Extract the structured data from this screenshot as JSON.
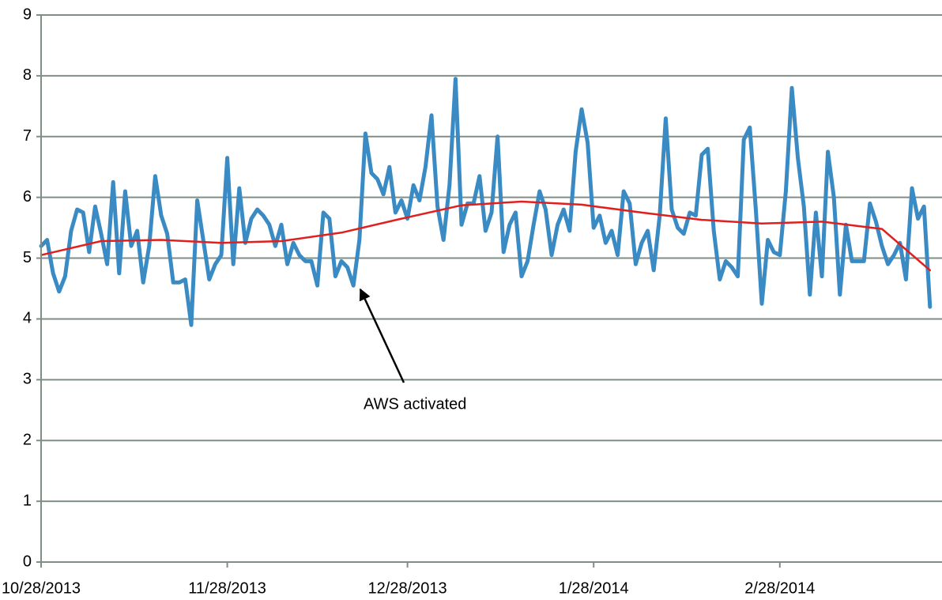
{
  "chart_data": {
    "type": "line",
    "annotation": "AWS activated",
    "xlim": [
      "2013-10-28",
      "2014-03-27"
    ],
    "xticks": [
      {
        "value": "2013-10-28",
        "label": "10/28/2013"
      },
      {
        "value": "2013-11-28",
        "label": "11/28/2013"
      },
      {
        "value": "2013-12-28",
        "label": "12/28/2013"
      },
      {
        "value": "2014-01-28",
        "label": "1/28/2014"
      },
      {
        "value": "2014-02-28",
        "label": "2/28/2014"
      }
    ],
    "ylim": [
      0,
      9
    ],
    "yticks": [
      0,
      1,
      2,
      3,
      4,
      5,
      6,
      7,
      8,
      9
    ],
    "grid": true,
    "series": [
      {
        "color": "#3a8ac4",
        "x": [
          "2013-10-28",
          "2013-10-29",
          "2013-10-30",
          "2013-10-31",
          "2013-11-01",
          "2013-11-02",
          "2013-11-03",
          "2013-11-04",
          "2013-11-05",
          "2013-11-06",
          "2013-11-07",
          "2013-11-08",
          "2013-11-09",
          "2013-11-10",
          "2013-11-11",
          "2013-11-12",
          "2013-11-13",
          "2013-11-14",
          "2013-11-15",
          "2013-11-16",
          "2013-11-17",
          "2013-11-18",
          "2013-11-19",
          "2013-11-20",
          "2013-11-21",
          "2013-11-22",
          "2013-11-23",
          "2013-11-24",
          "2013-11-25",
          "2013-11-26",
          "2013-11-27",
          "2013-11-28",
          "2013-11-29",
          "2013-11-30",
          "2013-12-01",
          "2013-12-02",
          "2013-12-03",
          "2013-12-04",
          "2013-12-05",
          "2013-12-06",
          "2013-12-07",
          "2013-12-08",
          "2013-12-09",
          "2013-12-10",
          "2013-12-11",
          "2013-12-12",
          "2013-12-13",
          "2013-12-14",
          "2013-12-15",
          "2013-12-16",
          "2013-12-17",
          "2013-12-18",
          "2013-12-19",
          "2013-12-20",
          "2013-12-21",
          "2013-12-22",
          "2013-12-23",
          "2013-12-24",
          "2013-12-25",
          "2013-12-26",
          "2013-12-27",
          "2013-12-28",
          "2013-12-29",
          "2013-12-30",
          "2013-12-31",
          "2014-01-01",
          "2014-01-02",
          "2014-01-03",
          "2014-01-04",
          "2014-01-05",
          "2014-01-06",
          "2014-01-07",
          "2014-01-08",
          "2014-01-09",
          "2014-01-10",
          "2014-01-11",
          "2014-01-12",
          "2014-01-13",
          "2014-01-14",
          "2014-01-15",
          "2014-01-16",
          "2014-01-17",
          "2014-01-18",
          "2014-01-19",
          "2014-01-20",
          "2014-01-21",
          "2014-01-22",
          "2014-01-23",
          "2014-01-24",
          "2014-01-25",
          "2014-01-26",
          "2014-01-27",
          "2014-01-28",
          "2014-01-29",
          "2014-01-30",
          "2014-01-31",
          "2014-02-01",
          "2014-02-02",
          "2014-02-03",
          "2014-02-04",
          "2014-02-05",
          "2014-02-06",
          "2014-02-07",
          "2014-02-08",
          "2014-02-09",
          "2014-02-10",
          "2014-02-11",
          "2014-02-12",
          "2014-02-13",
          "2014-02-14",
          "2014-02-15",
          "2014-02-16",
          "2014-02-17",
          "2014-02-18",
          "2014-02-19",
          "2014-02-20",
          "2014-02-21",
          "2014-02-22",
          "2014-02-23",
          "2014-02-24",
          "2014-02-25",
          "2014-02-26",
          "2014-02-27",
          "2014-02-28",
          "2014-03-01",
          "2014-03-02",
          "2014-03-03",
          "2014-03-04",
          "2014-03-05",
          "2014-03-06",
          "2014-03-07",
          "2014-03-08",
          "2014-03-09",
          "2014-03-10",
          "2014-03-11",
          "2014-03-12",
          "2014-03-13",
          "2014-03-14",
          "2014-03-15",
          "2014-03-16",
          "2014-03-17",
          "2014-03-18",
          "2014-03-19",
          "2014-03-20",
          "2014-03-21",
          "2014-03-22",
          "2014-03-23",
          "2014-03-24",
          "2014-03-25"
        ],
        "values": [
          5.2,
          5.3,
          4.75,
          4.45,
          4.7,
          5.45,
          5.8,
          5.75,
          5.1,
          5.85,
          5.4,
          4.9,
          6.25,
          4.75,
          6.1,
          5.2,
          5.45,
          4.6,
          5.2,
          6.35,
          5.7,
          5.4,
          4.6,
          4.6,
          4.65,
          3.9,
          5.95,
          5.3,
          4.65,
          4.9,
          5.05,
          6.65,
          4.9,
          6.15,
          5.25,
          5.65,
          5.8,
          5.7,
          5.55,
          5.2,
          5.55,
          4.9,
          5.25,
          5.05,
          4.95,
          4.95,
          4.55,
          5.75,
          5.65,
          4.7,
          4.95,
          4.85,
          4.55,
          5.3,
          7.05,
          6.4,
          6.3,
          6.05,
          6.5,
          5.75,
          5.95,
          5.65,
          6.2,
          5.95,
          6.5,
          7.35,
          5.85,
          5.3,
          6.2,
          7.95,
          5.55,
          5.9,
          5.9,
          6.35,
          5.45,
          5.75,
          7.0,
          5.1,
          5.55,
          5.75,
          4.7,
          4.95,
          5.55,
          6.1,
          5.8,
          5.05,
          5.55,
          5.8,
          5.45,
          6.75,
          7.45,
          6.9,
          5.5,
          5.7,
          5.25,
          5.45,
          5.05,
          6.1,
          5.9,
          4.9,
          5.25,
          5.45,
          4.8,
          5.7,
          7.3,
          5.8,
          5.5,
          5.4,
          5.75,
          5.7,
          6.7,
          6.8,
          5.45,
          4.65,
          4.95,
          4.85,
          4.7,
          6.95,
          7.15,
          5.8,
          4.25,
          5.3,
          5.1,
          5.05,
          6.1,
          7.8,
          6.65,
          5.85,
          4.4,
          5.75,
          4.7,
          6.75,
          6.0,
          4.4,
          5.55,
          4.95,
          4.95,
          4.95,
          5.9,
          5.6,
          5.2,
          4.9,
          5.05,
          5.25,
          4.65,
          6.15,
          5.65,
          5.85,
          4.2
        ]
      },
      {
        "color": "#e0201e",
        "x": [
          "2013-10-28",
          "2013-11-07",
          "2013-11-17",
          "2013-11-27",
          "2013-12-07",
          "2013-12-17",
          "2013-12-27",
          "2014-01-06",
          "2014-01-16",
          "2014-01-26",
          "2014-02-05",
          "2014-02-15",
          "2014-02-25",
          "2014-03-07",
          "2014-03-17",
          "2014-03-25"
        ],
        "values": [
          5.05,
          5.28,
          5.3,
          5.25,
          5.28,
          5.42,
          5.65,
          5.87,
          5.93,
          5.88,
          5.75,
          5.63,
          5.57,
          5.6,
          5.48,
          4.8
        ]
      }
    ]
  }
}
